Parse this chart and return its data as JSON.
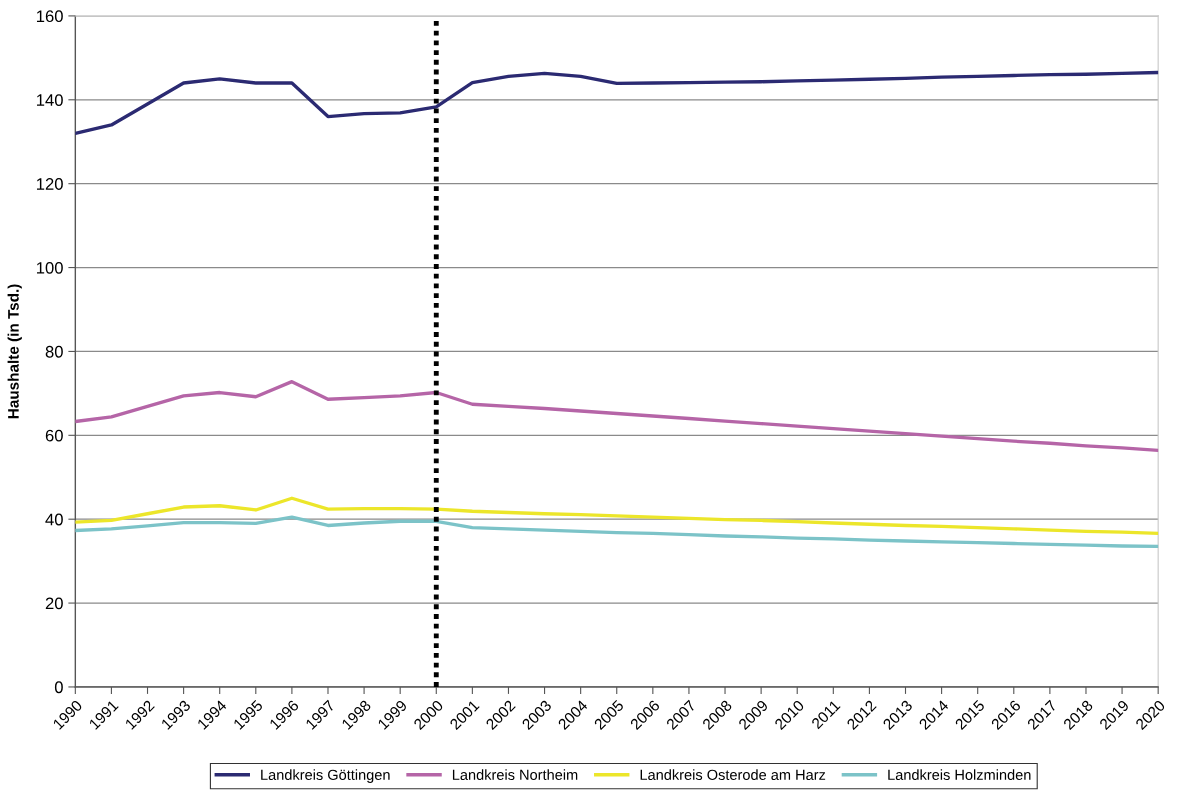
{
  "chart_data": {
    "type": "line",
    "ylabel": "Haushalte (in Tsd.)",
    "x": [
      1990,
      1991,
      1992,
      1993,
      1994,
      1995,
      1996,
      1997,
      1998,
      1999,
      2000,
      2001,
      2002,
      2003,
      2004,
      2005,
      2006,
      2007,
      2008,
      2009,
      2010,
      2011,
      2012,
      2013,
      2014,
      2015,
      2016,
      2017,
      2018,
      2019,
      2020
    ],
    "series": [
      {
        "name": "Landkreis Göttingen",
        "color": "#2b2a72",
        "values": [
          132,
          134,
          139,
          144,
          145,
          144,
          144,
          136,
          136.7,
          136.9,
          138.3,
          144.1,
          145.6,
          146.3,
          145.6,
          143.9,
          144.0,
          144.1,
          144.2,
          144.3,
          144.5,
          144.7,
          144.9,
          145.1,
          145.4,
          145.6,
          145.8,
          146.0,
          146.1,
          146.3,
          146.5
        ]
      },
      {
        "name": "Landkreis Northeim",
        "color": "#b565a7",
        "values": [
          63.3,
          64.4,
          66.9,
          69.4,
          70.2,
          69.2,
          72.8,
          68.6,
          69.0,
          69.4,
          70.2,
          67.4,
          66.9,
          66.4,
          65.8,
          65.2,
          64.6,
          64.0,
          63.4,
          62.8,
          62.2,
          61.6,
          61.0,
          60.4,
          59.8,
          59.2,
          58.6,
          58.1,
          57.5,
          57.0,
          56.4
        ]
      },
      {
        "name": "Landkreis Osterode am Harz",
        "color": "#ece62a",
        "values": [
          39.3,
          39.7,
          41.3,
          42.9,
          43.2,
          42.2,
          45.0,
          42.4,
          42.5,
          42.5,
          42.4,
          41.9,
          41.6,
          41.3,
          41.1,
          40.8,
          40.5,
          40.2,
          39.9,
          39.7,
          39.4,
          39.1,
          38.8,
          38.5,
          38.3,
          38.0,
          37.7,
          37.4,
          37.1,
          36.9,
          36.6
        ]
      },
      {
        "name": "Landkreis Holzminden",
        "color": "#7cc3c8",
        "values": [
          37.3,
          37.7,
          38.4,
          39.2,
          39.2,
          39.0,
          40.5,
          38.5,
          39.1,
          39.5,
          39.5,
          38.0,
          37.7,
          37.4,
          37.1,
          36.8,
          36.6,
          36.3,
          36.0,
          35.8,
          35.5,
          35.3,
          35.0,
          34.8,
          34.6,
          34.4,
          34.2,
          34.0,
          33.8,
          33.6,
          33.5
        ]
      }
    ],
    "xlim": [
      1990,
      2020
    ],
    "xticks": [
      1990,
      1991,
      1992,
      1993,
      1994,
      1995,
      1996,
      1997,
      1998,
      1999,
      2000,
      2001,
      2002,
      2003,
      2004,
      2005,
      2006,
      2007,
      2008,
      2009,
      2010,
      2011,
      2012,
      2013,
      2014,
      2015,
      2016,
      2017,
      2018,
      2019,
      2020
    ],
    "ylim": [
      0,
      160
    ],
    "yticks": [
      0,
      20,
      40,
      60,
      80,
      100,
      120,
      140,
      160
    ],
    "ref_lines": [
      {
        "axis": "x",
        "value": 2000,
        "color": "#000000",
        "line_style": "dotted"
      }
    ],
    "grid": "y",
    "legend": "bottom",
    "line_style": "solid",
    "marker": "none"
  }
}
